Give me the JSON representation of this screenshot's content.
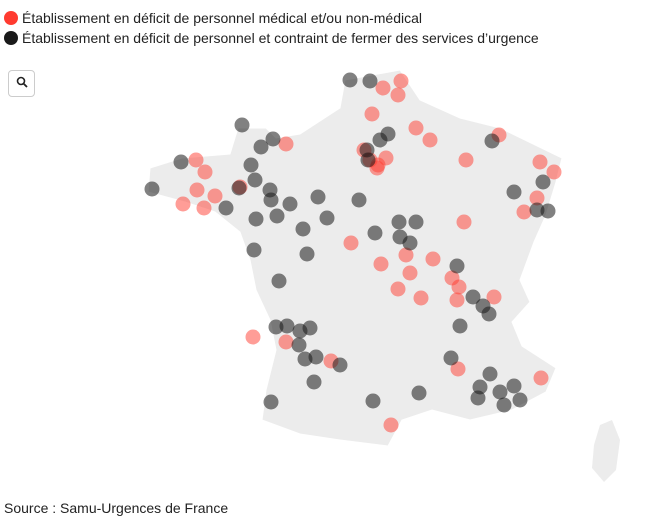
{
  "legend": {
    "items": [
      {
        "label": "Établissement en déficit de personnel médical et/ou non-médical",
        "color": "#ff3b30"
      },
      {
        "label": "Établissement en déficit de personnel et contraint de fermer des services d’urgence",
        "color": "#1a1a1a"
      }
    ]
  },
  "source": "Source : Samu-Urgences de France"
}
